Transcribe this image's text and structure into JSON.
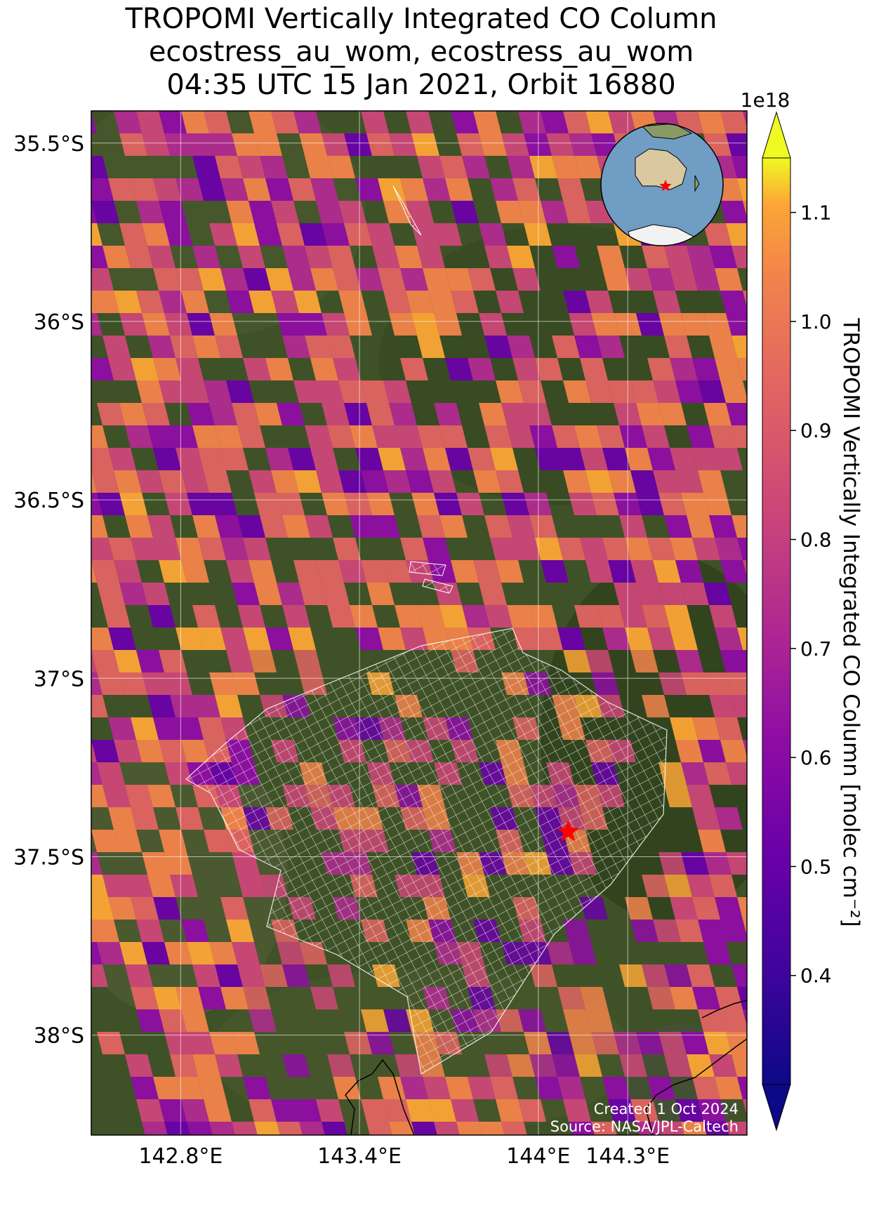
{
  "title": {
    "line1": "TROPOMI Vertically Integrated CO Column",
    "line2": "ecostress_au_wom, ecostress_au_wom",
    "line3": "04:35 UTC 15 Jan 2021, Orbit 16880"
  },
  "map": {
    "lon_range": [
      142.5,
      144.7
    ],
    "lat_range": [
      -38.28,
      -35.41
    ],
    "lon_ticks": [
      {
        "value": 142.8,
        "label": "142.8°E"
      },
      {
        "value": 143.4,
        "label": "143.4°E"
      },
      {
        "value": 144.0,
        "label": "144°E"
      },
      {
        "value": 144.3,
        "label": "144.3°E"
      }
    ],
    "lat_ticks": [
      {
        "value": -35.5,
        "label": "35.5°S"
      },
      {
        "value": -36.0,
        "label": "36°S"
      },
      {
        "value": -36.5,
        "label": "36.5°S"
      },
      {
        "value": -37.0,
        "label": "37°S"
      },
      {
        "value": -37.5,
        "label": "37.5°S"
      },
      {
        "value": -38.0,
        "label": "38°S"
      }
    ],
    "site_marker": {
      "lon": 144.1,
      "lat": -37.43,
      "color": "#ff0000"
    },
    "credit_line1": "Created 1 Oct 2024",
    "credit_line2": "Source: NASA/JPL-Caltech",
    "inset_globe": {
      "center_lon": 134,
      "center_lat": -40,
      "marker_color": "#ff0000"
    }
  },
  "colorbar": {
    "label": "TROPOMI Vertically Integrated CO Column [molec cm⁻²]",
    "exponent": "1e18",
    "colormap": "plasma",
    "range": [
      0.3,
      1.15
    ],
    "ticks": [
      "0.4",
      "0.5",
      "0.6",
      "0.7",
      "0.8",
      "0.9",
      "1.0",
      "1.1"
    ],
    "extend": "both"
  }
}
